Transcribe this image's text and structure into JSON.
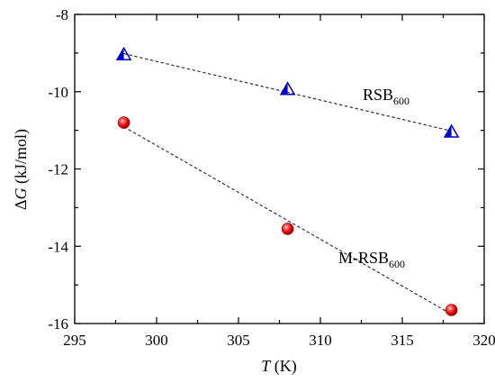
{
  "chart_data": {
    "type": "scatter",
    "title": "",
    "xlabel": "T (K)",
    "xlabel_var": "T",
    "xlabel_unit": " (K)",
    "ylabel": "ΔG (kJ/mol)",
    "ylabel_prefix": "Δ",
    "ylabel_var": "G",
    "ylabel_unit": " (kJ/mol)",
    "xlim": [
      295,
      320
    ],
    "ylim": [
      -16,
      -8
    ],
    "xticks": [
      295,
      300,
      305,
      310,
      315,
      320
    ],
    "yticks": [
      -16,
      -14,
      -12,
      -10,
      -8
    ],
    "grid": false,
    "series": [
      {
        "name": "RSB600",
        "label_base": "RSB",
        "label_sub": "600",
        "marker": "half-filled-triangle",
        "color": "#0000cc",
        "fit_line": "dashed",
        "x": [
          298,
          308,
          318
        ],
        "y": [
          -9.05,
          -9.95,
          -11.05
        ]
      },
      {
        "name": "M-RSB600",
        "label_base": "M-RSB",
        "label_sub": "600",
        "marker": "sphere",
        "color": "#e00000",
        "fit_line": "dashed",
        "x": [
          298,
          308,
          318
        ],
        "y": [
          -10.8,
          -13.55,
          -15.65
        ]
      }
    ]
  }
}
